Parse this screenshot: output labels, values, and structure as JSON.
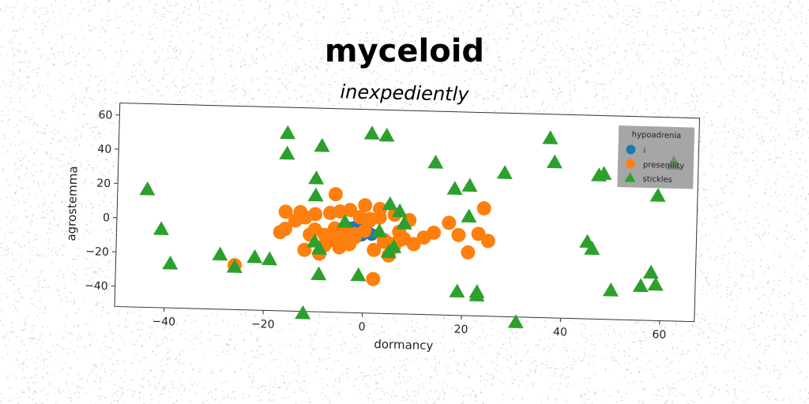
{
  "title": "myceloid",
  "subtitle": "inexpediently",
  "chart_data": {
    "type": "scatter",
    "title": "inexpediently",
    "xlabel": "dormancy",
    "ylabel": "agrostemma",
    "xlim": [
      -50,
      67
    ],
    "ylim": [
      -52,
      67
    ],
    "xticks": [
      -40,
      -20,
      0,
      20,
      40,
      60
    ],
    "xtick_labels": [
      "−40",
      "−20",
      "0",
      "20",
      "40",
      "60"
    ],
    "yticks": [
      -40,
      -20,
      0,
      20,
      40,
      60
    ],
    "ytick_labels": [
      "−40",
      "−20",
      "0",
      "20",
      "40",
      "60"
    ],
    "grid": false,
    "legend": {
      "title": "hypoadrenia",
      "placement": "top-right"
    },
    "series": [
      {
        "name": "i",
        "color": "#1f77b4",
        "marker": "circle",
        "x": [
          -6.2,
          -5.0,
          -4.1,
          -3.0,
          -2.0,
          -1.0,
          0.2,
          -5.5,
          -4.5,
          -3.5,
          -2.5,
          -1.5,
          -0.5,
          0.8,
          -3.0,
          -2.0,
          -1.0,
          0.0,
          -4.0,
          -2.5,
          -1.5,
          -6.8,
          1.5
        ],
        "y": [
          -5.5,
          -4.0,
          -3.5,
          -5.0,
          -3.0,
          -4.5,
          -3.5,
          -6.5,
          -7.0,
          -6.0,
          -7.5,
          -5.5,
          -6.5,
          -5.0,
          -2.5,
          -2.0,
          -1.5,
          -3.0,
          -8.0,
          -8.5,
          -7.5,
          -7.0,
          -6.0
        ]
      },
      {
        "name": "presenility",
        "color": "#ff7f0e",
        "marker": "circle",
        "x": [
          -26,
          -16,
          -16,
          -13,
          -12,
          -10,
          -10,
          -8,
          -7,
          -6,
          -5,
          -4,
          -3,
          -2,
          -1,
          0,
          0,
          1,
          2,
          3,
          4,
          5,
          6,
          7,
          -17,
          -12,
          -9,
          -6,
          -3,
          2,
          4,
          6,
          8,
          10,
          12,
          14,
          17,
          19,
          21,
          23,
          24,
          25,
          -14,
          -11,
          -5,
          -2,
          1,
          3,
          5,
          7,
          -8,
          -6,
          -4,
          9
        ],
        "y": [
          -26,
          6,
          -4,
          6,
          3,
          5,
          -4,
          -7,
          6,
          -10,
          7,
          -3,
          8,
          -6,
          4,
          11,
          -4,
          3,
          -32,
          4,
          -9,
          -18,
          6,
          -4,
          -6,
          -16,
          -18,
          17,
          -12,
          -15,
          -10,
          -13,
          -8,
          -11,
          -7,
          -4,
          2,
          -5,
          -15,
          -4,
          11,
          -8,
          1,
          -7,
          -14,
          -8,
          2,
          9,
          -11,
          -9,
          -13,
          -3,
          -6,
          3
        ]
      },
      {
        "name": "stickles",
        "color": "#2ca02c",
        "marker": "triangle",
        "x": [
          -44,
          -41,
          -39,
          -29,
          -26,
          -22,
          -19,
          -16,
          -16,
          -12,
          -10,
          -10,
          -10,
          -9,
          -9,
          -9,
          1,
          4,
          5,
          5,
          -1,
          6,
          7,
          8,
          14,
          18,
          19,
          21,
          21,
          23,
          23,
          28,
          31,
          37,
          38,
          45,
          46,
          47,
          48,
          50,
          56,
          58,
          59,
          59,
          62,
          -4,
          3
        ],
        "y": [
          17,
          -6,
          -26,
          -20,
          -27,
          -21,
          -22,
          52,
          40,
          -53,
          26,
          16,
          -11,
          -30,
          45,
          -15,
          53,
          52,
          12,
          -16,
          -30,
          -13,
          8,
          1,
          37,
          22,
          -38,
          24,
          6,
          -38,
          -40,
          32,
          -55,
          53,
          39,
          -7,
          -11,
          32,
          33,
          -35,
          -32,
          -24,
          -31,
          21,
          40,
          1,
          -4
        ]
      }
    ]
  }
}
